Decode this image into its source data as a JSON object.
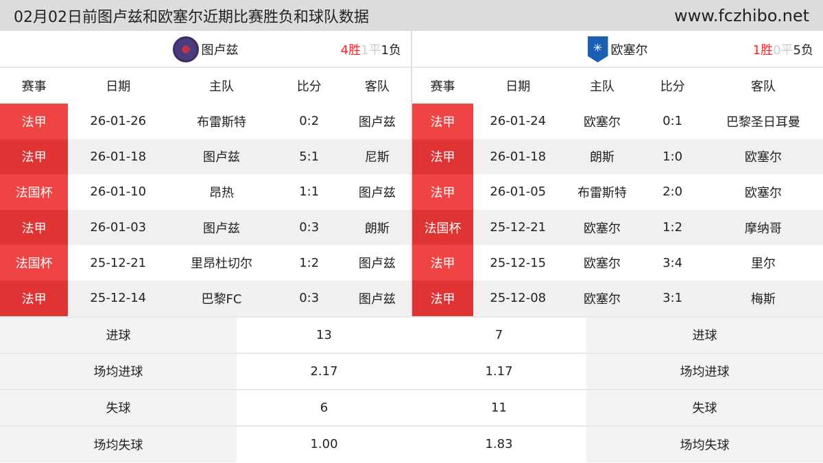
{
  "title": "02月02日前图卢兹和欧塞尔近期比赛胜负和球队数据",
  "site": "www.fczhibo.net",
  "headers": [
    "赛事",
    "日期",
    "主队",
    "比分",
    "客队"
  ],
  "left": {
    "team": "图卢兹",
    "logo": "toulouse-crest",
    "wins": "4胜",
    "draws": "1平",
    "losses": "1负",
    "rows": [
      [
        "法甲",
        "26-01-26",
        "布雷斯特",
        "0:2",
        "图卢兹"
      ],
      [
        "法甲",
        "26-01-18",
        "图卢兹",
        "5:1",
        "尼斯"
      ],
      [
        "法国杯",
        "26-01-10",
        "昂热",
        "1:1",
        "图卢兹"
      ],
      [
        "法甲",
        "26-01-03",
        "图卢兹",
        "0:3",
        "朗斯"
      ],
      [
        "法国杯",
        "25-12-21",
        "里昂杜切尔",
        "1:2",
        "图卢兹"
      ],
      [
        "法甲",
        "25-12-14",
        "巴黎FC",
        "0:3",
        "图卢兹"
      ]
    ]
  },
  "right": {
    "team": "欧塞尔",
    "logo": "auxerre-crest",
    "wins": "1胜",
    "draws": "0平",
    "losses": "5负",
    "rows": [
      [
        "法甲",
        "26-01-24",
        "欧塞尔",
        "0:1",
        "巴黎圣日耳曼"
      ],
      [
        "法甲",
        "26-01-18",
        "朗斯",
        "1:0",
        "欧塞尔"
      ],
      [
        "法甲",
        "26-01-05",
        "布雷斯特",
        "2:0",
        "欧塞尔"
      ],
      [
        "法国杯",
        "25-12-21",
        "欧塞尔",
        "1:2",
        "摩纳哥"
      ],
      [
        "法甲",
        "25-12-15",
        "欧塞尔",
        "3:4",
        "里尔"
      ],
      [
        "法甲",
        "25-12-08",
        "欧塞尔",
        "3:1",
        "梅斯"
      ]
    ]
  },
  "stats": [
    [
      "进球",
      "13",
      "7",
      "进球"
    ],
    [
      "场均进球",
      "2.17",
      "1.17",
      "场均进球"
    ],
    [
      "失球",
      "6",
      "11",
      "失球"
    ],
    [
      "场均失球",
      "1.00",
      "1.83",
      "场均失球"
    ]
  ]
}
